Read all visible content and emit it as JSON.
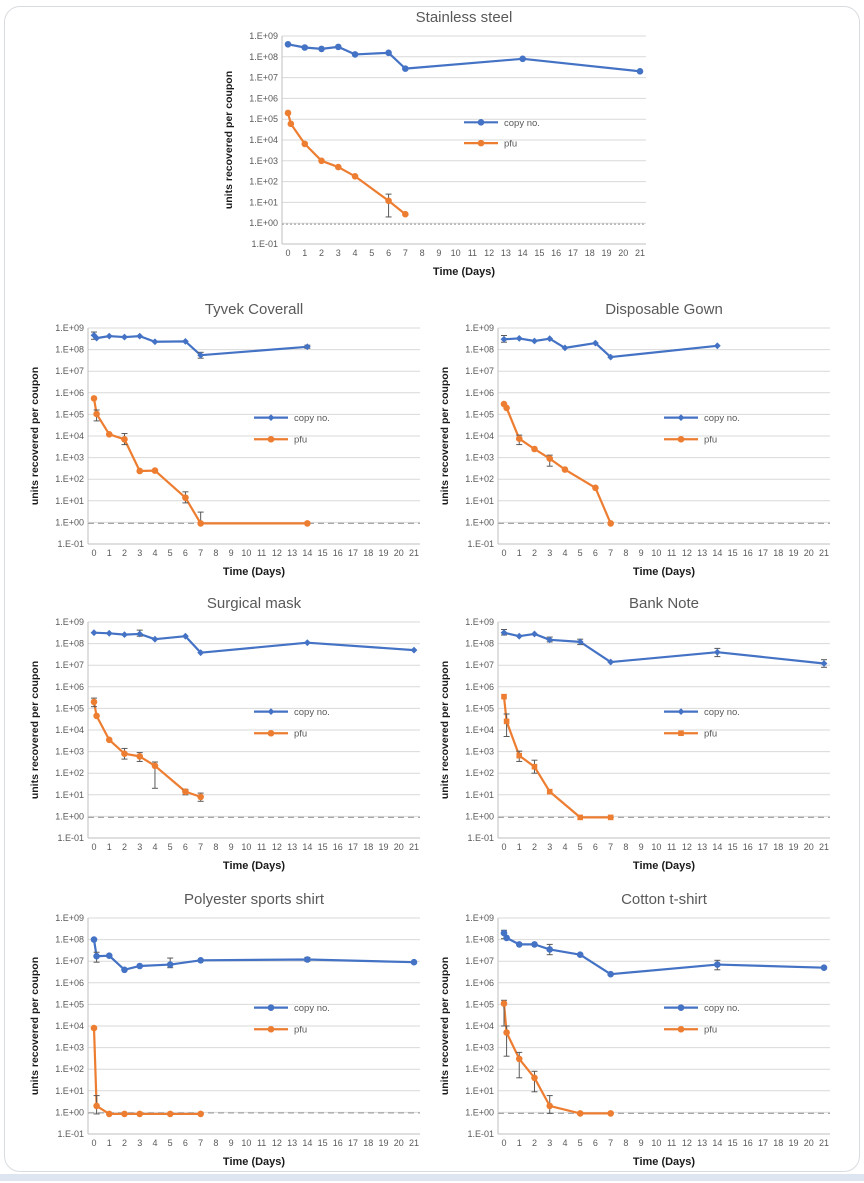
{
  "figure": {
    "background": "#ffffff",
    "border_color": "#d8dce0"
  },
  "series_colors": {
    "copy_no": "#4472c4",
    "pfu": "#ed7d31"
  },
  "axes_common": {
    "ylabel": "units recovered per coupon",
    "xlabel": "Time (Days)",
    "y_tick_labels": [
      "1.E+09",
      "1.E+08",
      "1.E+07",
      "1.E+06",
      "1.E+05",
      "1.E+04",
      "1.E+03",
      "1.E+02",
      "1.E+01",
      "1.E+00",
      "1.E-01"
    ],
    "y_log_min": -1,
    "y_log_max": 9,
    "x_ticks": [
      0,
      1,
      2,
      3,
      4,
      5,
      6,
      7,
      8,
      9,
      10,
      11,
      12,
      13,
      14,
      15,
      16,
      17,
      18,
      19,
      20,
      21
    ],
    "x_min": 0,
    "x_max": 21,
    "grid": true,
    "grid_color": "#d9d9d9",
    "axis_color": "#bfbfbf",
    "detection_line_color": "#a6a6a6",
    "tick_color": "#595959",
    "title_color": "#595959",
    "legend_position": "center-right"
  },
  "chart_data": [
    {
      "type": "line",
      "title": "Stainless steel",
      "detection_line_y": 0.9,
      "detection_style": "dotted",
      "series": [
        {
          "name": "copy no.",
          "color": "#4472c4",
          "marker": "circle",
          "x": [
            0,
            1,
            2,
            3,
            4,
            6,
            7,
            14,
            21
          ],
          "y": [
            400000000.0,
            280000000.0,
            240000000.0,
            300000000.0,
            130000000.0,
            155000000.0,
            27000000.0,
            80000000.0,
            20000000.0
          ],
          "err": [
            null,
            null,
            null,
            null,
            null,
            null,
            null,
            null,
            null
          ]
        },
        {
          "name": "pfu",
          "color": "#ed7d31",
          "marker": "circle",
          "x": [
            0,
            0.17,
            1,
            2,
            3,
            4,
            6,
            7
          ],
          "y": [
            200000.0,
            60000.0,
            6500.0,
            1000.0,
            500.0,
            180.0,
            12.0,
            2.7
          ],
          "err": [
            null,
            null,
            null,
            null,
            null,
            null,
            [
              2,
              25
            ],
            null
          ]
        }
      ]
    },
    {
      "type": "line",
      "title": "Tyvek Coverall",
      "detection_line_y": 0.9,
      "detection_style": "dashed",
      "series": [
        {
          "name": "copy no.",
          "color": "#4472c4",
          "marker": "diamond",
          "x": [
            0,
            0.17,
            1,
            2,
            3,
            4,
            6,
            7,
            14
          ],
          "y": [
            460000000.0,
            340000000.0,
            420000000.0,
            380000000.0,
            420000000.0,
            230000000.0,
            240000000.0,
            55000000.0,
            135000000.0
          ],
          "err": [
            [
              300000000.0,
              650000000.0
            ],
            null,
            null,
            null,
            null,
            null,
            null,
            [
              40000000.0,
              75000000.0
            ],
            [
              115000000.0,
              160000000.0
            ]
          ]
        },
        {
          "name": "pfu",
          "color": "#ed7d31",
          "marker": "circle",
          "x": [
            0,
            0.17,
            1,
            2,
            3,
            4,
            6,
            7,
            14
          ],
          "y": [
            550000.0,
            105000.0,
            12000.0,
            7000.0,
            240.0,
            250.0,
            14.0,
            0.9,
            0.9
          ],
          "err": [
            null,
            [
              50000.0,
              160000.0
            ],
            null,
            [
              4000.0,
              13000.0
            ],
            null,
            null,
            [
              8,
              26
            ],
            [
              0.9,
              3
            ],
            null
          ]
        }
      ]
    },
    {
      "type": "line",
      "title": "Disposable Gown",
      "detection_line_y": 0.9,
      "detection_style": "dashed",
      "series": [
        {
          "name": "copy no.",
          "color": "#4472c4",
          "marker": "diamond",
          "x": [
            0,
            1,
            2,
            3,
            4,
            6,
            7,
            14
          ],
          "y": [
            300000000.0,
            330000000.0,
            250000000.0,
            320000000.0,
            120000000.0,
            200000000.0,
            45000000.0,
            150000000.0
          ],
          "err": [
            [
              220000000.0,
              450000000.0
            ],
            null,
            null,
            null,
            null,
            null,
            null,
            null
          ]
        },
        {
          "name": "pfu",
          "color": "#ed7d31",
          "marker": "circle",
          "x": [
            0,
            0.17,
            1,
            2,
            3,
            4,
            6,
            7
          ],
          "y": [
            300000.0,
            200000.0,
            7500.0,
            2500.0,
            900.0,
            280.0,
            40.0,
            0.9
          ],
          "err": [
            null,
            null,
            [
              4000.0,
              11000.0
            ],
            null,
            [
              400.0,
              1300.0
            ],
            null,
            null,
            null
          ]
        }
      ]
    },
    {
      "type": "line",
      "title": "Surgical mask",
      "detection_line_y": 0.9,
      "detection_style": "dashed",
      "series": [
        {
          "name": "copy no.",
          "color": "#4472c4",
          "marker": "diamond",
          "x": [
            0,
            1,
            2,
            3,
            4,
            6,
            7,
            14,
            21
          ],
          "y": [
            320000000.0,
            300000000.0,
            260000000.0,
            280000000.0,
            160000000.0,
            220000000.0,
            38000000.0,
            110000000.0,
            50000000.0
          ],
          "err": [
            null,
            null,
            null,
            [
              220000000.0,
              420000000.0
            ],
            null,
            null,
            null,
            null,
            null
          ]
        },
        {
          "name": "pfu",
          "color": "#ed7d31",
          "marker": "circle",
          "x": [
            0,
            0.17,
            1,
            2,
            3,
            4,
            6,
            7
          ],
          "y": [
            200000.0,
            45000.0,
            3500.0,
            800.0,
            600.0,
            220.0,
            14.0,
            8
          ],
          "err": [
            [
              120000.0,
              300000.0
            ],
            null,
            null,
            [
              450.0,
              1400.0
            ],
            [
              350.0,
              900.0
            ],
            [
              20,
              330
            ],
            [
              10,
              18
            ],
            [
              5,
              12
            ]
          ]
        }
      ]
    },
    {
      "type": "line",
      "title": "Bank Note",
      "detection_line_y": 0.9,
      "detection_style": "dashed",
      "series": [
        {
          "name": "copy no.",
          "color": "#4472c4",
          "marker": "diamond",
          "x": [
            0,
            1,
            2,
            3,
            5,
            7,
            14,
            21
          ],
          "y": [
            320000000.0,
            220000000.0,
            280000000.0,
            150000000.0,
            120000000.0,
            14000000.0,
            40000000.0,
            12000000.0
          ],
          "err": [
            [
              250000000.0,
              450000000.0
            ],
            null,
            null,
            [
              120000000.0,
              200000000.0
            ],
            [
              90000000.0,
              160000000.0
            ],
            null,
            [
              25000000.0,
              60000000.0
            ],
            [
              8000000.0,
              18000000.0
            ]
          ]
        },
        {
          "name": "pfu",
          "color": "#ed7d31",
          "marker": "square",
          "x": [
            0,
            0.17,
            1,
            2,
            3,
            5,
            7
          ],
          "y": [
            350000.0,
            25000.0,
            650.0,
            200.0,
            14.0,
            0.9,
            0.9
          ],
          "err": [
            null,
            [
              5000.0,
              55000.0
            ],
            [
              350.0,
              1050.0
            ],
            [
              100.0,
              400.0
            ],
            null,
            null,
            null
          ]
        }
      ]
    },
    {
      "type": "line",
      "title": "Polyester sports shirt",
      "detection_line_y": 0.95,
      "detection_style": "dashed",
      "series": [
        {
          "name": "copy no.",
          "color": "#4472c4",
          "marker": "circle",
          "x": [
            0,
            0.17,
            1,
            2,
            3,
            5,
            7,
            14,
            21
          ],
          "y": [
            100000000.0,
            17000000.0,
            18000000.0,
            4000000.0,
            6000000.0,
            7000000.0,
            11000000.0,
            12000000.0,
            9000000.0
          ],
          "err": [
            null,
            [
              9000000.0,
              26000000.0
            ],
            null,
            null,
            null,
            [
              5000000.0,
              14000000.0
            ],
            null,
            [
              10000000.0,
              15000000.0
            ],
            null
          ]
        },
        {
          "name": "pfu",
          "color": "#ed7d31",
          "marker": "circle",
          "x": [
            0,
            0.17,
            1,
            2,
            3,
            5,
            7
          ],
          "y": [
            8000.0,
            2,
            0.85,
            0.85,
            0.85,
            0.85,
            0.85
          ],
          "err": [
            null,
            [
              0.85,
              6
            ],
            null,
            null,
            null,
            null,
            null
          ]
        }
      ]
    },
    {
      "type": "line",
      "title": "Cotton t-shirt",
      "detection_line_y": 0.9,
      "detection_style": "dashed",
      "series": [
        {
          "name": "copy no.",
          "color": "#4472c4",
          "marker": "circle",
          "x": [
            0,
            0.17,
            1,
            2,
            3,
            5,
            7,
            14,
            21
          ],
          "y": [
            200000000.0,
            120000000.0,
            60000000.0,
            60000000.0,
            35000000.0,
            20000000.0,
            2500000.0,
            7000000.0,
            5000000.0
          ],
          "err": [
            [
              110000000.0,
              270000000.0
            ],
            null,
            null,
            null,
            [
              20000000.0,
              60000000.0
            ],
            null,
            null,
            [
              4000000.0,
              11000000.0
            ],
            null
          ]
        },
        {
          "name": "pfu",
          "color": "#ed7d31",
          "marker": "circle",
          "x": [
            0,
            0.17,
            1,
            2,
            3,
            5,
            7
          ],
          "y": [
            110000.0,
            5000.0,
            300.0,
            40.0,
            2,
            0.9,
            0.9
          ],
          "err": [
            [
              10000.0,
              155000.0
            ],
            [
              400.0,
              10000.0
            ],
            [
              40,
              600
            ],
            [
              9,
              80
            ],
            [
              0.9,
              6
            ],
            null,
            null
          ]
        }
      ]
    }
  ]
}
